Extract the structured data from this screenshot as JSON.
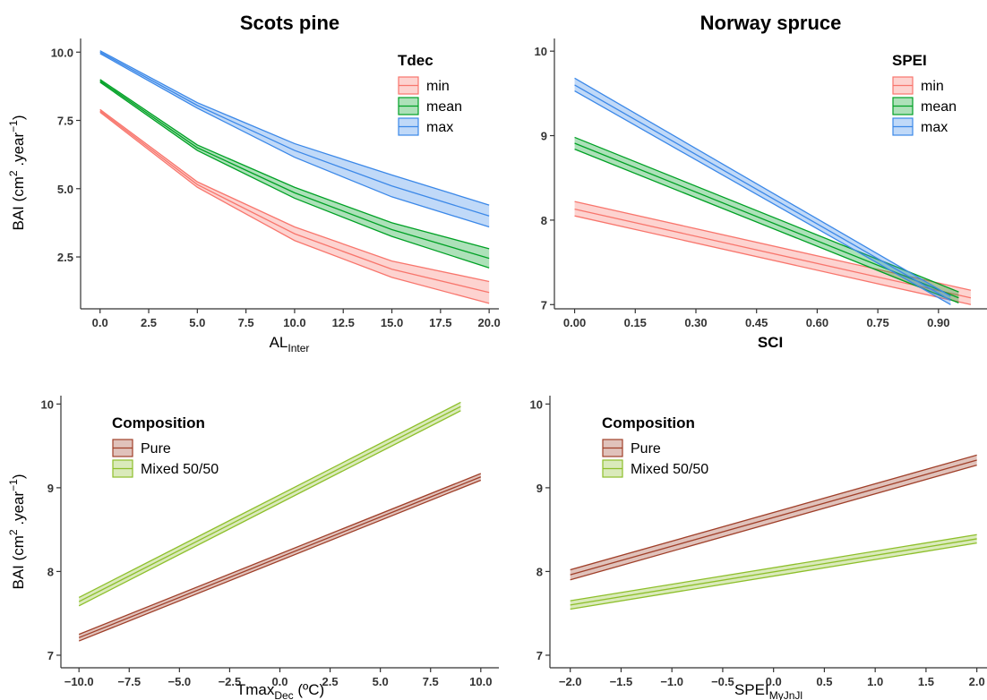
{
  "colors": {
    "min": "#F8766D",
    "mean": "#00A125",
    "max": "#3B88E8",
    "pure": "#A0402A",
    "mixed": "#8DBF2A"
  },
  "chart_data": [
    {
      "type": "line",
      "panel": "top-left",
      "title": "Scots pine",
      "xlabel": {
        "main": "AL",
        "sub": "Inter"
      },
      "ylabel": {
        "pre": "BAI (cm",
        "sup1": "2",
        "mid": " .year",
        "sup2": "−1",
        "post": ")"
      },
      "xlim": [
        -1,
        20.5
      ],
      "ylim": [
        0.6,
        10.5
      ],
      "xticks": [
        0,
        2.5,
        5,
        7.5,
        10,
        12.5,
        15,
        17.5,
        20
      ],
      "xtick_labels": [
        "0.0",
        "2.5",
        "5.0",
        "7.5",
        "10.0",
        "12.5",
        "15.0",
        "17.5",
        "20.0"
      ],
      "yticks": [
        2.5,
        5,
        7.5,
        10
      ],
      "ytick_labels": [
        "2.5",
        "5.0",
        "7.5",
        "10.0"
      ],
      "legend": {
        "title": "Tdec",
        "position": "top-right"
      },
      "series": [
        {
          "name": "min",
          "color_key": "min",
          "x": [
            0,
            5,
            10,
            15,
            20
          ],
          "y": [
            7.85,
            5.15,
            3.35,
            2.05,
            1.2
          ],
          "lower": [
            7.8,
            5.05,
            3.1,
            1.75,
            0.8
          ],
          "upper": [
            7.9,
            5.25,
            3.6,
            2.35,
            1.6
          ]
        },
        {
          "name": "mean",
          "color_key": "mean",
          "x": [
            0,
            5,
            10,
            15,
            20
          ],
          "y": [
            8.95,
            6.5,
            4.85,
            3.5,
            2.45
          ],
          "lower": [
            8.9,
            6.4,
            4.65,
            3.25,
            2.1
          ],
          "upper": [
            9.0,
            6.6,
            5.05,
            3.75,
            2.8
          ]
        },
        {
          "name": "max",
          "color_key": "max",
          "x": [
            0,
            5,
            10,
            15,
            20
          ],
          "y": [
            10.0,
            8.05,
            6.4,
            5.1,
            4.0
          ],
          "lower": [
            9.95,
            7.95,
            6.15,
            4.7,
            3.6
          ],
          "upper": [
            10.05,
            8.15,
            6.65,
            5.5,
            4.4
          ]
        }
      ]
    },
    {
      "type": "line",
      "panel": "top-right",
      "title": "Norway spruce",
      "xlabel": {
        "main": "SCI"
      },
      "ylabel": {},
      "xlim": [
        -0.05,
        1.02
      ],
      "ylim": [
        6.95,
        10.15
      ],
      "xticks": [
        0,
        0.15,
        0.3,
        0.45,
        0.6,
        0.75,
        0.9
      ],
      "xtick_labels": [
        "0.00",
        "0.15",
        "0.30",
        "0.45",
        "0.60",
        "0.75",
        "0.90"
      ],
      "yticks": [
        7,
        8,
        9,
        10
      ],
      "ytick_labels": [
        "7",
        "8",
        "9",
        "10"
      ],
      "legend": {
        "title": "SPEI",
        "position": "top-right"
      },
      "series": [
        {
          "name": "min",
          "color_key": "min",
          "x": [
            0,
            0.98
          ],
          "y": [
            8.13,
            7.08
          ],
          "lower": [
            8.05,
            7.0
          ],
          "upper": [
            8.22,
            7.17
          ]
        },
        {
          "name": "mean",
          "color_key": "mean",
          "x": [
            0,
            0.95
          ],
          "y": [
            8.91,
            7.08
          ],
          "lower": [
            8.84,
            7.02
          ],
          "upper": [
            8.98,
            7.15
          ]
        },
        {
          "name": "max",
          "color_key": "max",
          "x": [
            0,
            0.93
          ],
          "y": [
            9.6,
            7.05
          ],
          "lower": [
            9.53,
            7.0
          ],
          "upper": [
            9.68,
            7.1
          ]
        }
      ]
    },
    {
      "type": "line",
      "panel": "bottom-left",
      "title": "",
      "xlabel": {
        "main": "Tmax",
        "sub": "Dec",
        "post": " (ºC)"
      },
      "ylabel": {
        "pre": "BAI (cm",
        "sup1": "2",
        "mid": " .year",
        "sup2": "−1",
        "post": ")"
      },
      "xlim": [
        -10.9,
        10.9
      ],
      "ylim": [
        6.85,
        10.1
      ],
      "xticks": [
        -10,
        -7.5,
        -5,
        -2.5,
        0,
        2.5,
        5,
        7.5,
        10
      ],
      "xtick_labels": [
        "−10.0",
        "−7.5",
        "−5.0",
        "−2.5",
        "0.0",
        "2.5",
        "5.0",
        "7.5",
        "10.0"
      ],
      "yticks": [
        7,
        8,
        9,
        10
      ],
      "ytick_labels": [
        "7",
        "8",
        "9",
        "10"
      ],
      "legend": {
        "title": "Composition",
        "position": "top-left"
      },
      "series": [
        {
          "name": "Pure",
          "color_key": "pure",
          "x": [
            -10,
            10
          ],
          "y": [
            7.21,
            9.13
          ],
          "lower": [
            7.17,
            9.09
          ],
          "upper": [
            7.25,
            9.17
          ]
        },
        {
          "name": "Mixed 50/50",
          "color_key": "mixed",
          "x": [
            -10,
            9
          ],
          "y": [
            7.64,
            9.97
          ],
          "lower": [
            7.59,
            9.92
          ],
          "upper": [
            7.69,
            10.02
          ]
        }
      ]
    },
    {
      "type": "line",
      "panel": "bottom-right",
      "title": "",
      "xlabel": {
        "main": "SPEI",
        "sub": "MyJnJl"
      },
      "ylabel": {},
      "xlim": [
        -2.2,
        2.1
      ],
      "ylim": [
        6.85,
        10.1
      ],
      "xticks": [
        -2,
        -1.5,
        -1,
        -0.5,
        0,
        0.5,
        1,
        1.5,
        2
      ],
      "xtick_labels": [
        "−2.0",
        "−1.5",
        "−1.0",
        "−0.5",
        "0.0",
        "0.5",
        "1.0",
        "1.5",
        "2.0"
      ],
      "yticks": [
        7,
        8,
        9,
        10
      ],
      "ytick_labels": [
        "7",
        "8",
        "9",
        "10"
      ],
      "legend": {
        "title": "Composition",
        "position": "top-left"
      },
      "series": [
        {
          "name": "Pure",
          "color_key": "pure",
          "x": [
            -2,
            2
          ],
          "y": [
            7.96,
            9.33
          ],
          "lower": [
            7.9,
            9.27
          ],
          "upper": [
            8.02,
            9.39
          ]
        },
        {
          "name": "Mixed 50/50",
          "color_key": "mixed",
          "x": [
            -2,
            2
          ],
          "y": [
            7.6,
            8.39
          ],
          "lower": [
            7.55,
            8.34
          ],
          "upper": [
            7.65,
            8.44
          ]
        }
      ]
    }
  ]
}
